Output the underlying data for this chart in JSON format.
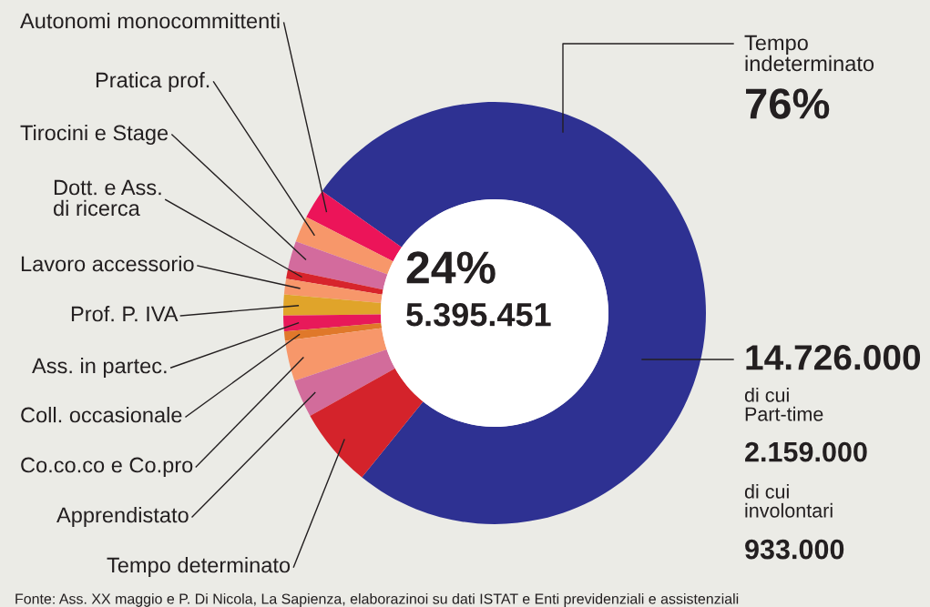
{
  "chart_data": {
    "type": "donut",
    "categories": [
      "Tempo\nindeterminato",
      "Autonomi monocommittenti",
      "Pratica prof.",
      "Tirocini e Stage",
      "Dott. e Ass.\ndi ricerca",
      "Lavoro accessorio",
      "Prof. P. IVA",
      "Ass. in partec.",
      "Coll. occasionale",
      "Co.co.co e Co.pro",
      "Apprendistato",
      "Tempo determinato"
    ],
    "values": [
      76,
      2.3,
      2.0,
      2.2,
      0.7,
      1.2,
      1.6,
      1.2,
      0.7,
      3.1,
      2.9,
      6.1
    ],
    "colors": [
      "#2e3192",
      "#ec1459",
      "#f7976a",
      "#d36b9d",
      "#d7242c",
      "#f7976a",
      "#e0a42a",
      "#e8195a",
      "#e0782a",
      "#f7976a",
      "#d26c9b",
      "#d4232b"
    ],
    "value_labels": [
      "76%",
      null,
      null,
      null,
      null,
      null,
      null,
      null,
      null,
      null,
      null,
      null
    ],
    "annotations": [
      "24%",
      "5.395.451",
      "14.726.000",
      "di cui\nPart-time",
      "2.159.000",
      "di cui\ninvolontari",
      "933.000",
      "Fonte: Ass. XX maggio e P. Di Nicola, La Sapienza, elaborazinoi su dati ISTAT e Enti previdenziali e assistenziali"
    ]
  }
}
